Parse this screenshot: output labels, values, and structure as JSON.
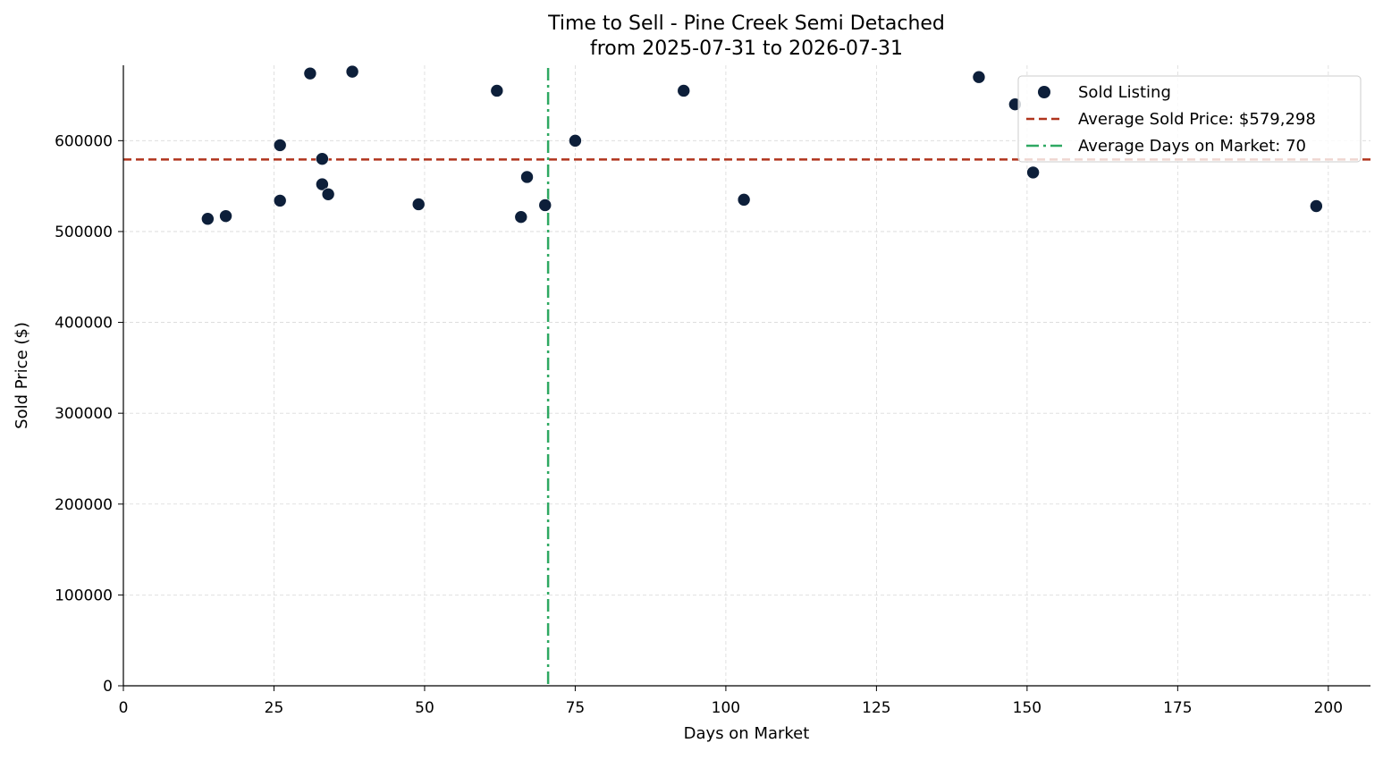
{
  "chart_data": {
    "type": "scatter",
    "title": "Time to Sell - Pine Creek Semi Detached",
    "subtitle": "from 2025-07-31 to 2026-07-31",
    "xlabel": "Days on Market",
    "ylabel": "Sold Price ($)",
    "xlim": [
      0,
      207
    ],
    "ylim": [
      0,
      683000
    ],
    "xticks": [
      0,
      25,
      50,
      75,
      100,
      125,
      150,
      175,
      200
    ],
    "yticks": [
      0,
      100000,
      200000,
      300000,
      400000,
      500000,
      600000
    ],
    "grid": true,
    "legend_position": "top-right",
    "series": [
      {
        "name": "Sold Listing",
        "color": "#0d1f3a",
        "points": [
          {
            "x": 14,
            "y": 514000
          },
          {
            "x": 17,
            "y": 517000
          },
          {
            "x": 26,
            "y": 595000
          },
          {
            "x": 26,
            "y": 534000
          },
          {
            "x": 31,
            "y": 674000
          },
          {
            "x": 33,
            "y": 580000
          },
          {
            "x": 33,
            "y": 552000
          },
          {
            "x": 34,
            "y": 541000
          },
          {
            "x": 38,
            "y": 676000
          },
          {
            "x": 49,
            "y": 530000
          },
          {
            "x": 62,
            "y": 655000
          },
          {
            "x": 66,
            "y": 516000
          },
          {
            "x": 67,
            "y": 560000
          },
          {
            "x": 70,
            "y": 529000
          },
          {
            "x": 75,
            "y": 600000
          },
          {
            "x": 93,
            "y": 655000
          },
          {
            "x": 103,
            "y": 535000
          },
          {
            "x": 142,
            "y": 670000
          },
          {
            "x": 148,
            "y": 640000
          },
          {
            "x": 151,
            "y": 565000
          },
          {
            "x": 198,
            "y": 528000
          }
        ]
      }
    ],
    "reference_lines": [
      {
        "orientation": "horizontal",
        "value": 579298,
        "label": "Average Sold Price: $579,298",
        "color": "#b0341d",
        "style": "dashed"
      },
      {
        "orientation": "vertical",
        "value": 70.5,
        "label": "Average Days on Market: 70",
        "color": "#2ea862",
        "style": "dashdot"
      }
    ]
  }
}
